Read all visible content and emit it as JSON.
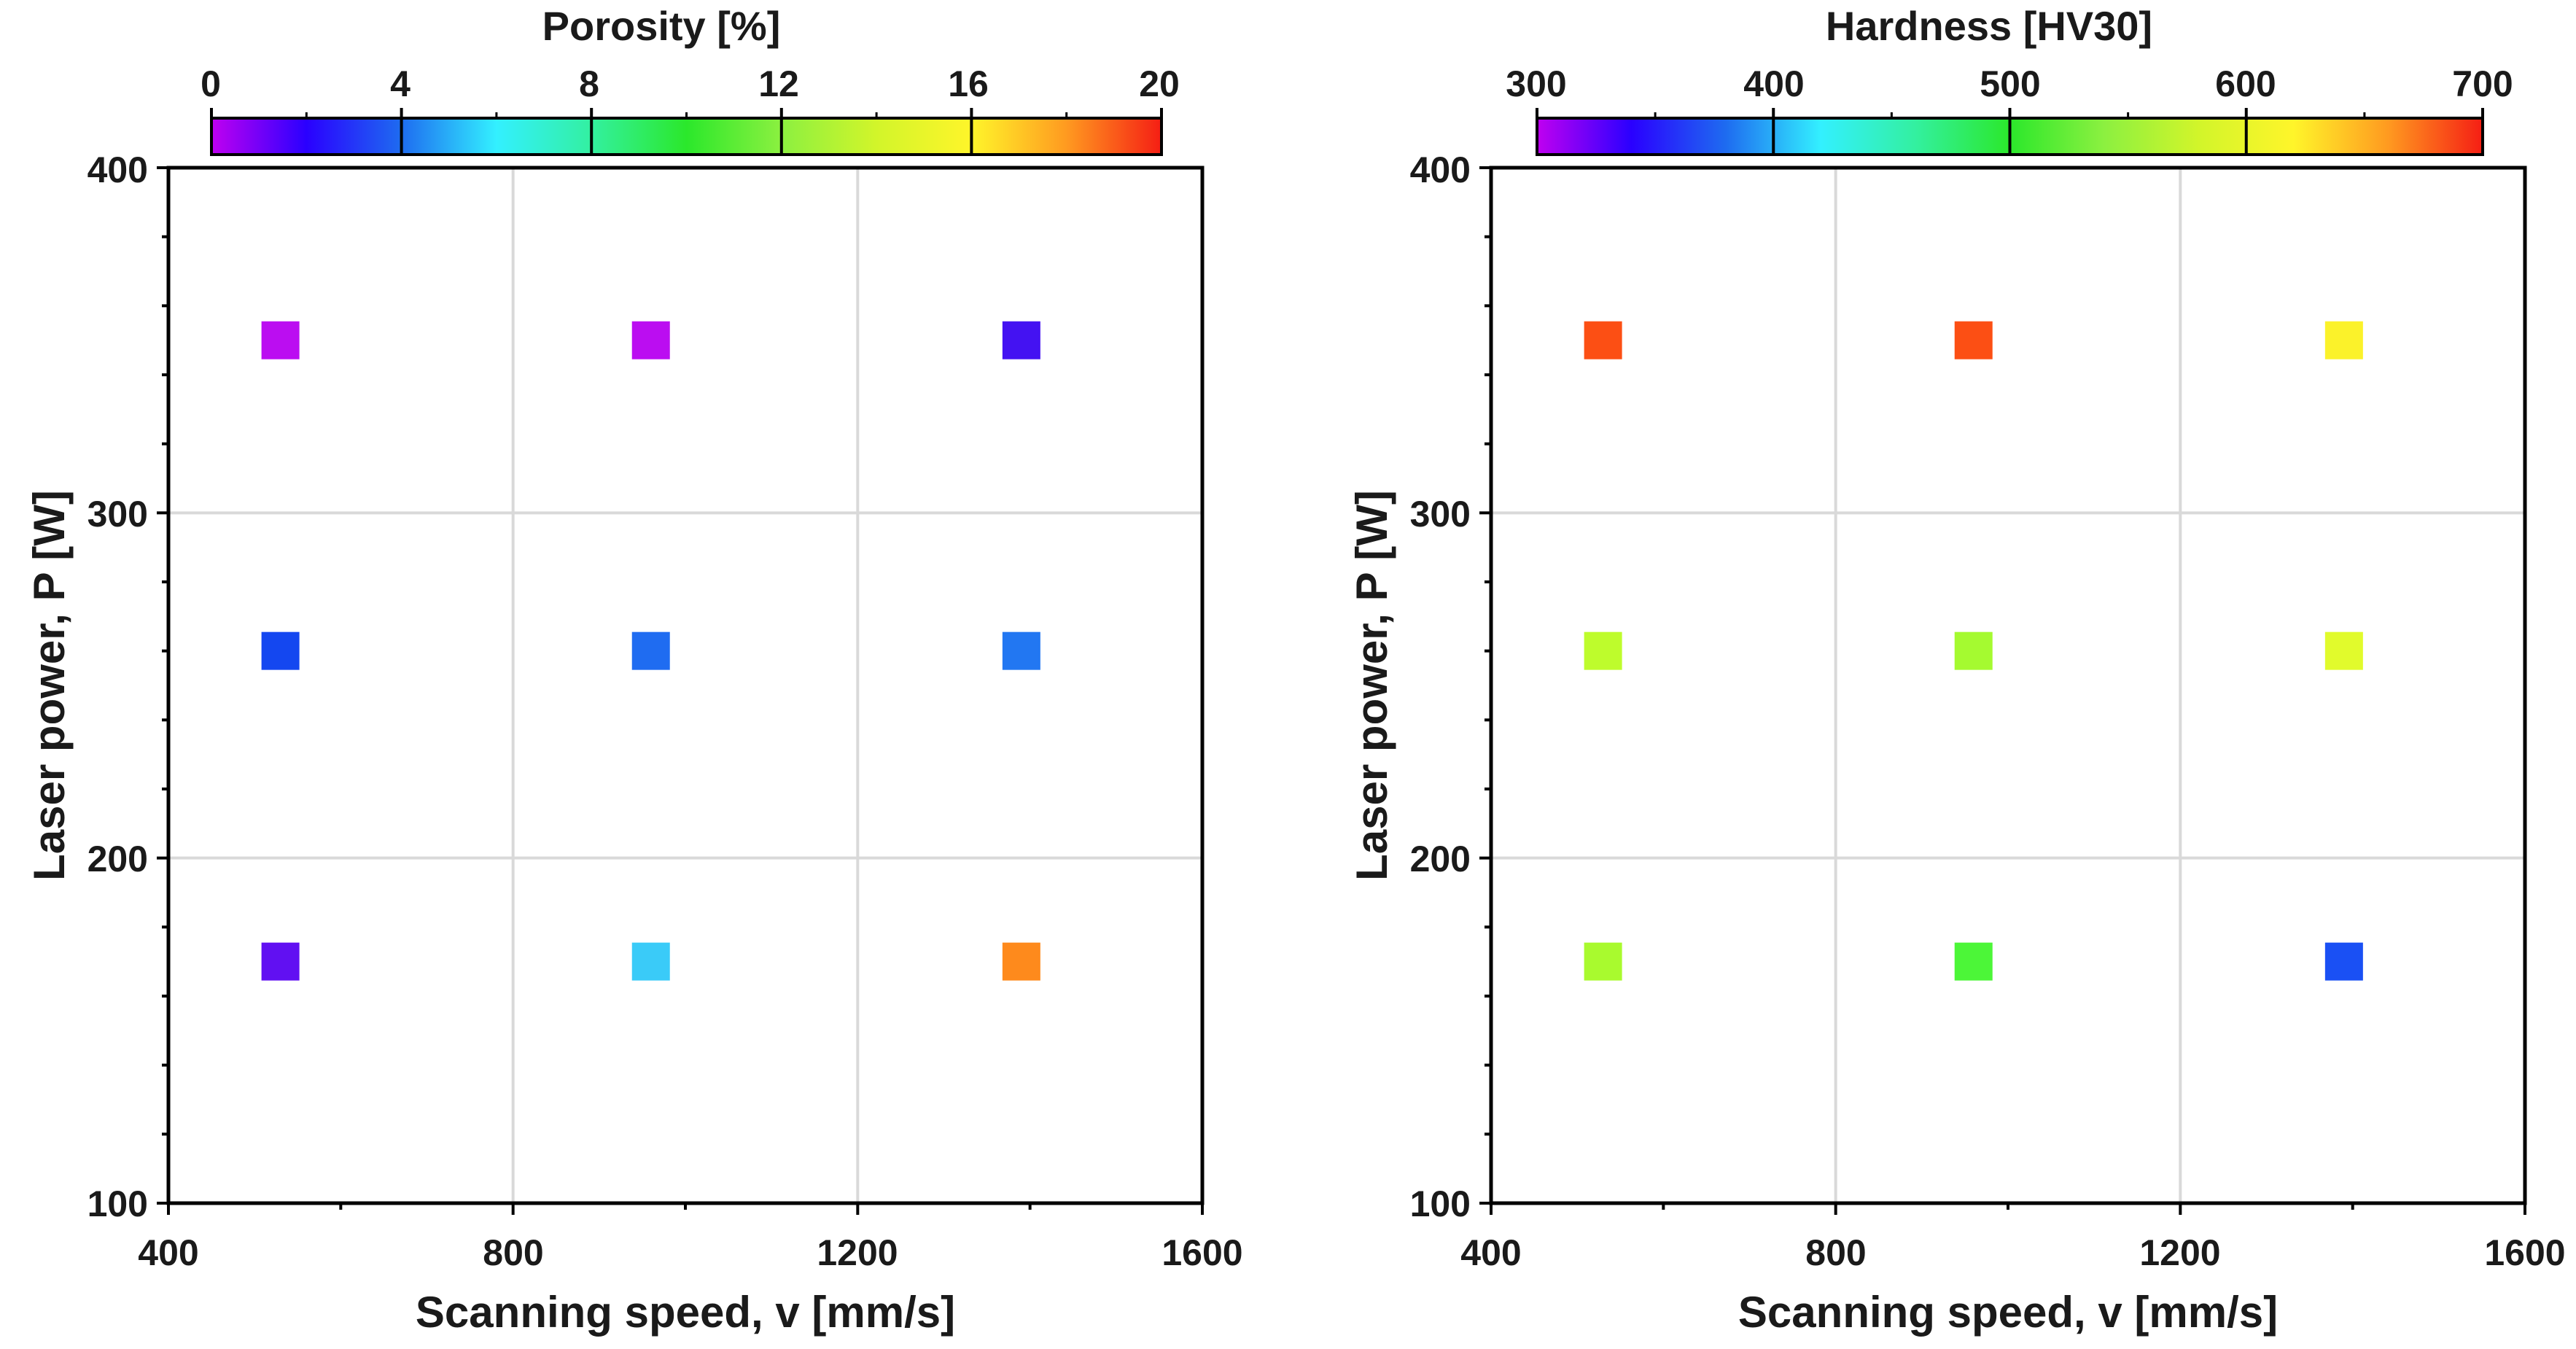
{
  "chart_data": [
    {
      "type": "scatter",
      "title": "Porosity [%]",
      "xlabel": "Scanning speed, v [mm/s]",
      "ylabel": "Laser power, P [W]",
      "xlim": [
        400,
        1600
      ],
      "ylim": [
        100,
        400
      ],
      "xticks": [
        400,
        800,
        1200,
        1600
      ],
      "yticks": [
        100,
        200,
        300,
        400
      ],
      "x_tick_labels": [
        "400",
        "800",
        "1200",
        "1600"
      ],
      "y_tick_labels": [
        "100",
        "200",
        "300",
        "400"
      ],
      "grid": true,
      "colorbar": {
        "label": "Porosity [%]",
        "range": [
          0,
          20
        ],
        "ticks": [
          0,
          4,
          8,
          12,
          16,
          20
        ],
        "tick_labels": [
          "0",
          "4",
          "8",
          "12",
          "16",
          "20"
        ]
      },
      "points": [
        {
          "x": 530,
          "y": 350,
          "value": 0.5,
          "color": "#bb0df1"
        },
        {
          "x": 960,
          "y": 350,
          "value": 0.5,
          "color": "#bb0df1"
        },
        {
          "x": 1390,
          "y": 350,
          "value": 2.0,
          "color": "#4412f2"
        },
        {
          "x": 530,
          "y": 260,
          "value": 3.6,
          "color": "#1447f0"
        },
        {
          "x": 960,
          "y": 260,
          "value": 4.3,
          "color": "#1f6cf1"
        },
        {
          "x": 1390,
          "y": 260,
          "value": 4.6,
          "color": "#2277f2"
        },
        {
          "x": 530,
          "y": 170,
          "value": 2.0,
          "color": "#6110f2"
        },
        {
          "x": 960,
          "y": 170,
          "value": 6.2,
          "color": "#3acbf8"
        },
        {
          "x": 1390,
          "y": 170,
          "value": 17.5,
          "color": "#fe8a1c"
        }
      ]
    },
    {
      "type": "scatter",
      "title": "Hardness [HV30]",
      "xlabel": "Scanning speed, v [mm/s]",
      "ylabel": "Laser power, P [W]",
      "xlim": [
        400,
        1600
      ],
      "ylim": [
        100,
        400
      ],
      "xticks": [
        400,
        800,
        1200,
        1600
      ],
      "yticks": [
        100,
        200,
        300,
        400
      ],
      "x_tick_labels": [
        "400",
        "800",
        "1200",
        "1600"
      ],
      "y_tick_labels": [
        "100",
        "200",
        "300",
        "400"
      ],
      "grid": true,
      "colorbar": {
        "label": "Hardness [HV30]",
        "range": [
          300,
          700
        ],
        "ticks": [
          300,
          400,
          500,
          600,
          700
        ],
        "tick_labels": [
          "300",
          "400",
          "500",
          "600",
          "700"
        ]
      },
      "points": [
        {
          "x": 530,
          "y": 350,
          "value": 660,
          "color": "#fc4f14"
        },
        {
          "x": 960,
          "y": 350,
          "value": 660,
          "color": "#fc4f14"
        },
        {
          "x": 1390,
          "y": 350,
          "value": 585,
          "color": "#fbf22a"
        },
        {
          "x": 530,
          "y": 260,
          "value": 545,
          "color": "#befc2c"
        },
        {
          "x": 960,
          "y": 260,
          "value": 535,
          "color": "#a5fa30"
        },
        {
          "x": 1390,
          "y": 260,
          "value": 565,
          "color": "#e1fb2c"
        },
        {
          "x": 530,
          "y": 170,
          "value": 535,
          "color": "#a9fa2e"
        },
        {
          "x": 960,
          "y": 170,
          "value": 505,
          "color": "#4cf638"
        },
        {
          "x": 1390,
          "y": 170,
          "value": 390,
          "color": "#1a50f4"
        }
      ]
    }
  ]
}
